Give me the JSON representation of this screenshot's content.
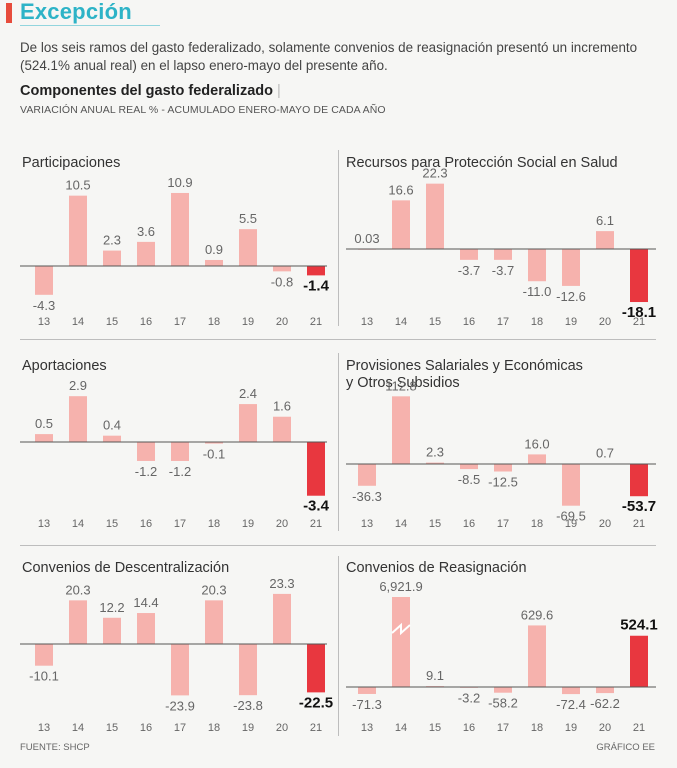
{
  "header": {
    "title": "Excepción",
    "intro": "De los seis ramos del gasto federalizado, solamente convenios de reasignación presentó un incremento (524.1% anual real) en el lapso enero-mayo del presente año.",
    "subtitle": "Componentes del gasto federalizado",
    "subtitle_sep": "|",
    "description": "VARIACIÓN ANUAL REAL % - ACUMULADO ENERO-MAYO DE CADA AÑO"
  },
  "footer": {
    "source": "FUENTE: SHCP",
    "credit": "GRÁFICO EE"
  },
  "colors": {
    "bar": "#f6b2ad",
    "highlight": "#e8373f",
    "accent": "#2db3c7"
  },
  "chart_data": [
    {
      "type": "bar",
      "title": "Participaciones",
      "categories": [
        "13",
        "14",
        "15",
        "16",
        "17",
        "18",
        "19",
        "20",
        "21"
      ],
      "values": [
        -4.3,
        10.5,
        2.3,
        3.6,
        10.9,
        0.9,
        5.5,
        -0.8,
        -1.4
      ],
      "value_labels": [
        "-4.3",
        "10.5",
        "2.3",
        "3.6",
        "10.9",
        "0.9",
        "5.5",
        "-0.8",
        "-1.4"
      ],
      "highlight_index": 8,
      "ylim": [
        -4.3,
        10.9
      ]
    },
    {
      "type": "bar",
      "title": "Recursos para Protección Social en Salud",
      "categories": [
        "13",
        "14",
        "15",
        "16",
        "17",
        "18",
        "19",
        "20",
        "21"
      ],
      "values": [
        0.03,
        16.6,
        22.3,
        -3.7,
        -3.7,
        -11.0,
        -12.6,
        6.1,
        -18.1
      ],
      "value_labels": [
        "0.03",
        "16.6",
        "22.3",
        "-3.7",
        "-3.7",
        "-11.0",
        "-12.6",
        "6.1",
        "-18.1"
      ],
      "highlight_index": 8,
      "ylim": [
        -18.1,
        22.3
      ]
    },
    {
      "type": "bar",
      "title": "Aportaciones",
      "categories": [
        "13",
        "14",
        "15",
        "16",
        "17",
        "18",
        "19",
        "20",
        "21"
      ],
      "values": [
        0.5,
        2.9,
        0.4,
        -1.2,
        -1.2,
        -0.1,
        2.4,
        1.6,
        -3.4
      ],
      "value_labels": [
        "0.5",
        "2.9",
        "0.4",
        "-1.2",
        "-1.2",
        "-0.1",
        "2.4",
        "1.6",
        "-3.4"
      ],
      "highlight_index": 8,
      "ylim": [
        -3.4,
        2.9
      ]
    },
    {
      "type": "bar",
      "title": "Provisiones Salariales y Económicas",
      "title_line2": "y Otros Subsidios",
      "categories": [
        "13",
        "14",
        "15",
        "16",
        "17",
        "18",
        "19",
        "20",
        "21"
      ],
      "values": [
        -36.3,
        112.8,
        2.3,
        -8.5,
        -12.5,
        16.0,
        -69.5,
        0.7,
        -53.7
      ],
      "value_labels": [
        "-36.3",
        "112.8",
        "2.3",
        "-8.5",
        "-12.5",
        "16.0",
        "-69.5",
        "0.7",
        "-53.7"
      ],
      "highlight_index": 8,
      "ylim": [
        -69.5,
        112.8
      ]
    },
    {
      "type": "bar",
      "title": "Convenios de Descentralización",
      "categories": [
        "13",
        "14",
        "15",
        "16",
        "17",
        "18",
        "19",
        "20",
        "21"
      ],
      "values": [
        -10.1,
        20.3,
        12.2,
        14.4,
        -23.9,
        20.3,
        -23.8,
        23.3,
        -22.5
      ],
      "value_labels": [
        "-10.1",
        "20.3",
        "12.2",
        "14.4",
        "-23.9",
        "20.3",
        "-23.8",
        "23.3",
        "-22.5"
      ],
      "highlight_index": 8,
      "ylim": [
        -23.9,
        23.3
      ]
    },
    {
      "type": "bar",
      "title": "Convenios de Reasignación",
      "categories": [
        "13",
        "14",
        "15",
        "16",
        "17",
        "18",
        "19",
        "20",
        "21"
      ],
      "values": [
        -71.3,
        6921.9,
        9.1,
        -3.2,
        -58.2,
        629.6,
        -72.4,
        -62.2,
        524.1
      ],
      "value_labels": [
        "-71.3",
        "6,921.9",
        "9.1",
        "-3.2",
        "-58.2",
        "629.6",
        "-72.4",
        "-62.2",
        "524.1"
      ],
      "highlight_index": 8,
      "broken_axis_index": 1,
      "ylim": [
        -72.4,
        930
      ]
    }
  ]
}
